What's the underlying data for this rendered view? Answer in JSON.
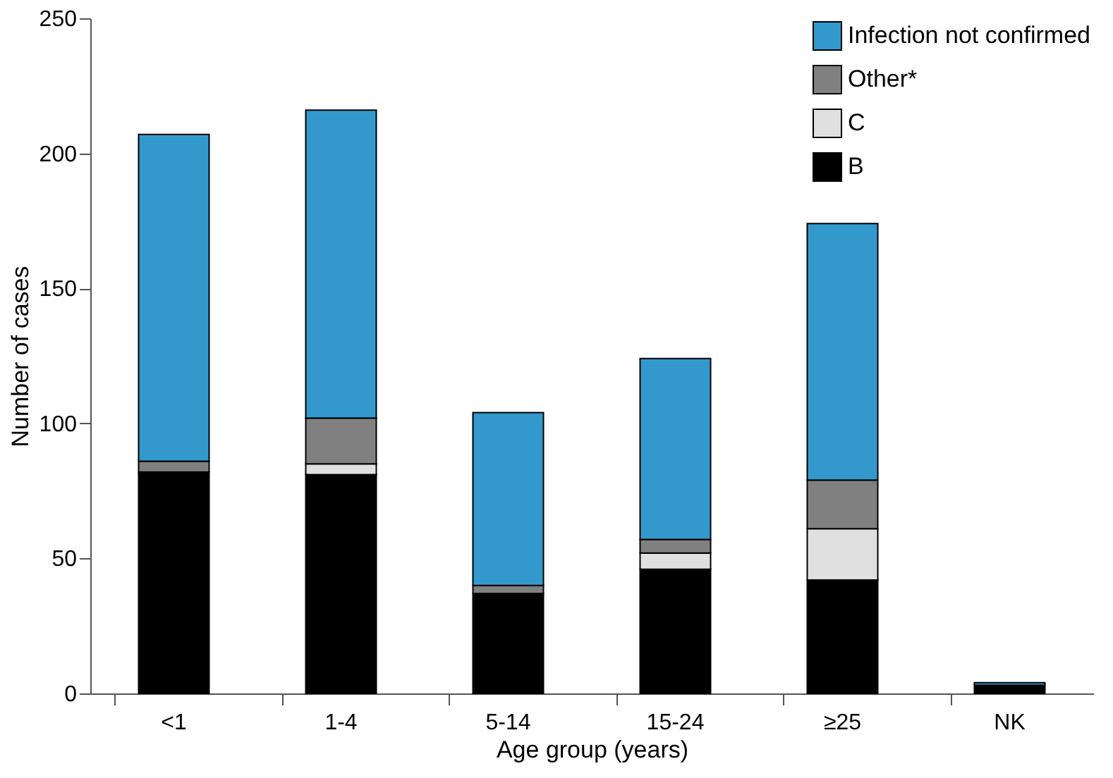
{
  "chart_data": {
    "type": "bar",
    "stacked": true,
    "xlabel": "Age group (years)",
    "ylabel": "Number of cases",
    "categories": [
      "<1",
      "1-4",
      "5-14",
      "15-24",
      "≥25",
      "NK"
    ],
    "series": [
      {
        "name": "B",
        "color": "#000000",
        "values": [
          82,
          81,
          37,
          46,
          42,
          3
        ]
      },
      {
        "name": "C",
        "color": "#e0e0e0",
        "values": [
          0,
          4,
          0,
          6,
          19,
          0
        ]
      },
      {
        "name": "Other*",
        "color": "#808080",
        "values": [
          4,
          17,
          3,
          5,
          18,
          0
        ]
      },
      {
        "name": "Infection not confirmed",
        "color": "#3399cc",
        "values": [
          121,
          114,
          64,
          67,
          95,
          1
        ]
      }
    ],
    "ylim": [
      0,
      250
    ],
    "yticks": [
      0,
      50,
      100,
      150,
      200,
      250
    ],
    "grid": false,
    "legend": "top right"
  }
}
